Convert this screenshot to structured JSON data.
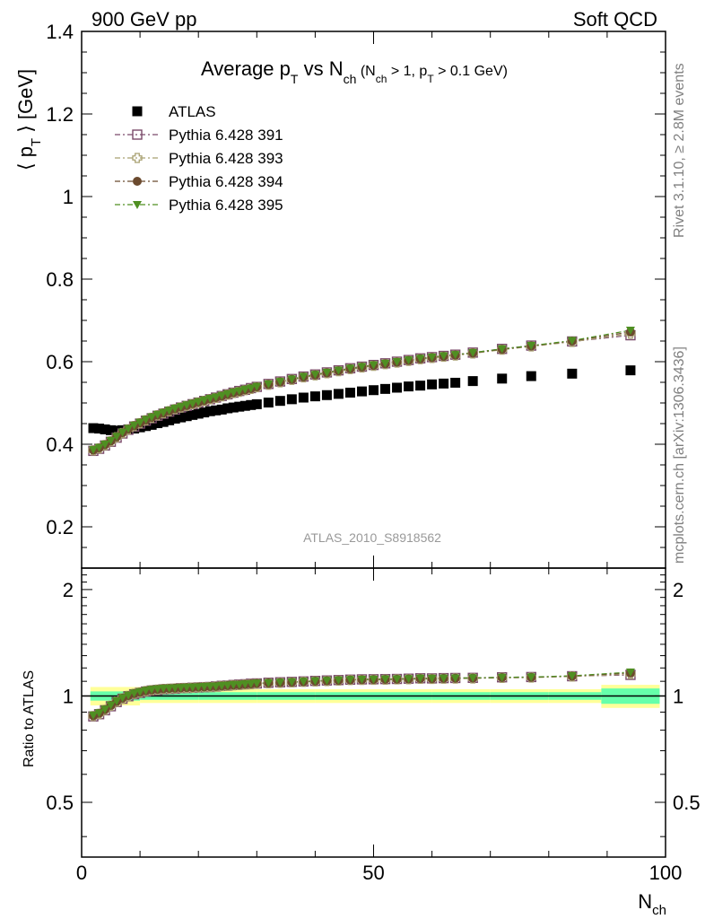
{
  "header": {
    "left": "900 GeV pp",
    "right": "Soft QCD"
  },
  "side_labels": {
    "rivet": "Rivet 3.1.10, ≥ 2.8M events",
    "mcplots": "mcplots.cern.ch [arXiv:1306.3436]"
  },
  "colors": {
    "atlas": "#000000",
    "p391": "#7a4a6a",
    "p393": "#a8a070",
    "p394": "#6b4a2e",
    "p395": "#4f8f22",
    "band_inner": "#66ffaa",
    "band_outer": "#ffff99",
    "ratio_line": "#000000",
    "watermark": "#808080"
  },
  "chart_data": [
    {
      "type": "scatter",
      "title": "Average pT vs Nch (Nch > 1, pT > 0.1 GeV)",
      "title_parts": {
        "main": "Average p",
        "main_sub": "T",
        "vs": " vs N",
        "vs_sub": "ch",
        "cut_open": " (N",
        "cut_sub1": "ch",
        "cut_mid": " > 1, p",
        "cut_sub2": "T",
        "cut_end": " > 0.1 GeV)"
      },
      "ylabel": "⟨ pT ⟩ [GeV]",
      "ylabel_parts": {
        "open": "⟨ p",
        "sub": "T",
        "close": " ⟩ [GeV]"
      },
      "watermark": "ATLAS_2010_S8918562",
      "xlim": [
        0,
        100
      ],
      "ylim": [
        0.1,
        1.4
      ],
      "yticks": [
        0.2,
        0.4,
        0.6,
        0.8,
        1,
        1.2,
        1.4
      ],
      "ytick_labels": [
        "0.2",
        "0.4",
        "0.6",
        "0.8",
        "1",
        "1.2",
        "1.4"
      ],
      "legend_position": "top-left",
      "series": [
        {
          "name": "ATLAS",
          "marker": "square-filled",
          "x": [
            2,
            3,
            4,
            5,
            6,
            7,
            8,
            9,
            10,
            11,
            12,
            13,
            14,
            15,
            16,
            17,
            18,
            19,
            20,
            21,
            22,
            23,
            24,
            25,
            26,
            27,
            28,
            29,
            30,
            32,
            34,
            36,
            38,
            40,
            42,
            44,
            46,
            48,
            50,
            52,
            54,
            56,
            58,
            60,
            62,
            64,
            67,
            72,
            77,
            84,
            94
          ],
          "y": [
            0.439,
            0.438,
            0.436,
            0.434,
            0.433,
            0.434,
            0.436,
            0.438,
            0.441,
            0.444,
            0.447,
            0.451,
            0.454,
            0.458,
            0.462,
            0.465,
            0.468,
            0.471,
            0.474,
            0.477,
            0.48,
            0.482,
            0.484,
            0.487,
            0.489,
            0.491,
            0.493,
            0.495,
            0.497,
            0.501,
            0.505,
            0.509,
            0.513,
            0.516,
            0.519,
            0.522,
            0.525,
            0.528,
            0.531,
            0.534,
            0.537,
            0.54,
            0.542,
            0.545,
            0.547,
            0.549,
            0.553,
            0.559,
            0.565,
            0.571,
            0.579
          ]
        },
        {
          "name": "Pythia 6.428 391",
          "marker": "square-open",
          "x": [
            2,
            3,
            4,
            5,
            6,
            7,
            8,
            9,
            10,
            11,
            12,
            13,
            14,
            15,
            16,
            17,
            18,
            19,
            20,
            21,
            22,
            23,
            24,
            25,
            26,
            27,
            28,
            29,
            30,
            32,
            34,
            36,
            38,
            40,
            42,
            44,
            46,
            48,
            50,
            52,
            54,
            56,
            58,
            60,
            62,
            64,
            67,
            72,
            77,
            84,
            94
          ],
          "y": [
            0.384,
            0.389,
            0.397,
            0.406,
            0.416,
            0.426,
            0.435,
            0.443,
            0.45,
            0.457,
            0.463,
            0.469,
            0.474,
            0.479,
            0.484,
            0.489,
            0.493,
            0.497,
            0.501,
            0.505,
            0.509,
            0.513,
            0.517,
            0.521,
            0.525,
            0.529,
            0.532,
            0.536,
            0.539,
            0.546,
            0.552,
            0.558,
            0.564,
            0.569,
            0.574,
            0.579,
            0.584,
            0.588,
            0.592,
            0.596,
            0.6,
            0.604,
            0.608,
            0.611,
            0.614,
            0.617,
            0.622,
            0.631,
            0.639,
            0.649,
            0.664
          ]
        },
        {
          "name": "Pythia 6.428 393",
          "marker": "cross-open",
          "x": [
            2,
            3,
            4,
            5,
            6,
            7,
            8,
            9,
            10,
            11,
            12,
            13,
            14,
            15,
            16,
            17,
            18,
            19,
            20,
            21,
            22,
            23,
            24,
            25,
            26,
            27,
            28,
            29,
            30,
            32,
            34,
            36,
            38,
            40,
            42,
            44,
            46,
            48,
            50,
            52,
            54,
            56,
            58,
            60,
            62,
            64,
            67,
            72,
            77,
            84,
            94
          ],
          "y": [
            0.385,
            0.39,
            0.398,
            0.407,
            0.417,
            0.427,
            0.436,
            0.444,
            0.451,
            0.458,
            0.464,
            0.47,
            0.475,
            0.48,
            0.485,
            0.489,
            0.493,
            0.497,
            0.501,
            0.505,
            0.509,
            0.512,
            0.516,
            0.52,
            0.524,
            0.527,
            0.531,
            0.534,
            0.538,
            0.544,
            0.55,
            0.556,
            0.562,
            0.567,
            0.572,
            0.577,
            0.582,
            0.586,
            0.59,
            0.594,
            0.598,
            0.602,
            0.606,
            0.609,
            0.612,
            0.615,
            0.62,
            0.629,
            0.637,
            0.648,
            0.668
          ]
        },
        {
          "name": "Pythia 6.428 394",
          "marker": "circle-filled",
          "x": [
            2,
            3,
            4,
            5,
            6,
            7,
            8,
            9,
            10,
            11,
            12,
            13,
            14,
            15,
            16,
            17,
            18,
            19,
            20,
            21,
            22,
            23,
            24,
            25,
            26,
            27,
            28,
            29,
            30,
            32,
            34,
            36,
            38,
            40,
            42,
            44,
            46,
            48,
            50,
            52,
            54,
            56,
            58,
            60,
            62,
            64,
            67,
            72,
            77,
            84,
            94
          ],
          "y": [
            0.386,
            0.391,
            0.399,
            0.408,
            0.418,
            0.428,
            0.437,
            0.445,
            0.452,
            0.459,
            0.465,
            0.471,
            0.476,
            0.481,
            0.486,
            0.49,
            0.494,
            0.498,
            0.502,
            0.506,
            0.51,
            0.513,
            0.517,
            0.521,
            0.525,
            0.528,
            0.532,
            0.535,
            0.539,
            0.545,
            0.551,
            0.557,
            0.563,
            0.568,
            0.573,
            0.578,
            0.583,
            0.587,
            0.591,
            0.595,
            0.599,
            0.603,
            0.607,
            0.61,
            0.613,
            0.616,
            0.621,
            0.63,
            0.638,
            0.65,
            0.672
          ]
        },
        {
          "name": "Pythia 6.428 395",
          "marker": "triangle-down-filled",
          "x": [
            2,
            3,
            4,
            5,
            6,
            7,
            8,
            9,
            10,
            11,
            12,
            13,
            14,
            15,
            16,
            17,
            18,
            19,
            20,
            21,
            22,
            23,
            24,
            25,
            26,
            27,
            28,
            29,
            30,
            32,
            34,
            36,
            38,
            40,
            42,
            44,
            46,
            48,
            50,
            52,
            54,
            56,
            58,
            60,
            62,
            64,
            67,
            72,
            77,
            84,
            94
          ],
          "y": [
            0.387,
            0.392,
            0.4,
            0.409,
            0.419,
            0.429,
            0.438,
            0.446,
            0.453,
            0.46,
            0.466,
            0.472,
            0.477,
            0.482,
            0.487,
            0.491,
            0.495,
            0.499,
            0.503,
            0.507,
            0.511,
            0.514,
            0.518,
            0.522,
            0.526,
            0.529,
            0.533,
            0.536,
            0.54,
            0.546,
            0.552,
            0.558,
            0.564,
            0.569,
            0.574,
            0.579,
            0.584,
            0.588,
            0.592,
            0.596,
            0.6,
            0.604,
            0.608,
            0.611,
            0.614,
            0.617,
            0.622,
            0.631,
            0.639,
            0.651,
            0.676
          ]
        }
      ]
    },
    {
      "type": "scatter",
      "ylabel": "Ratio to ATLAS",
      "xlabel": "Nch",
      "xlabel_parts": {
        "main": "N",
        "sub": "ch"
      },
      "xlim": [
        0,
        100
      ],
      "ylim": [
        0.35,
        2.3
      ],
      "y_scale": "log",
      "xticks": [
        0,
        50,
        100
      ],
      "xtick_labels": [
        "0",
        "50",
        "100"
      ],
      "yticks": [
        0.5,
        1,
        2
      ],
      "ytick_labels": [
        "0.5",
        "1",
        "2"
      ],
      "reference_line": 1,
      "uncertainty_band": {
        "x_edges": [
          1.5,
          10,
          20,
          30,
          40,
          50,
          60,
          70,
          80,
          89,
          99
        ],
        "inner": [
          0.03,
          0.025,
          0.025,
          0.025,
          0.025,
          0.025,
          0.025,
          0.025,
          0.025,
          0.05
        ],
        "outer": [
          0.06,
          0.045,
          0.045,
          0.045,
          0.045,
          0.045,
          0.045,
          0.045,
          0.045,
          0.075
        ]
      },
      "series": [
        {
          "name": "Pythia 6.428 391",
          "marker": "square-open",
          "x": [
            2,
            3,
            4,
            5,
            6,
            7,
            8,
            9,
            10,
            11,
            12,
            13,
            14,
            15,
            16,
            17,
            18,
            19,
            20,
            21,
            22,
            23,
            24,
            25,
            26,
            27,
            28,
            29,
            30,
            32,
            34,
            36,
            38,
            40,
            42,
            44,
            46,
            48,
            50,
            52,
            54,
            56,
            58,
            60,
            62,
            64,
            67,
            72,
            77,
            84,
            94
          ],
          "y": [
            0.875,
            0.888,
            0.911,
            0.935,
            0.961,
            0.982,
            0.998,
            1.011,
            1.02,
            1.029,
            1.036,
            1.04,
            1.044,
            1.046,
            1.048,
            1.052,
            1.053,
            1.055,
            1.057,
            1.059,
            1.06,
            1.064,
            1.068,
            1.07,
            1.074,
            1.077,
            1.079,
            1.083,
            1.085,
            1.09,
            1.093,
            1.096,
            1.099,
            1.103,
            1.106,
            1.109,
            1.112,
            1.114,
            1.115,
            1.116,
            1.117,
            1.119,
            1.122,
            1.121,
            1.123,
            1.124,
            1.125,
            1.129,
            1.131,
            1.137,
            1.147
          ]
        },
        {
          "name": "Pythia 6.428 393",
          "marker": "cross-open",
          "x": [
            2,
            3,
            4,
            5,
            6,
            7,
            8,
            9,
            10,
            11,
            12,
            13,
            14,
            15,
            16,
            17,
            18,
            19,
            20,
            21,
            22,
            23,
            24,
            25,
            26,
            27,
            28,
            29,
            30,
            32,
            34,
            36,
            38,
            40,
            42,
            44,
            46,
            48,
            50,
            52,
            54,
            56,
            58,
            60,
            62,
            64,
            67,
            72,
            77,
            84,
            94
          ],
          "y": [
            0.877,
            0.89,
            0.913,
            0.938,
            0.963,
            0.984,
            1.0,
            1.014,
            1.023,
            1.032,
            1.038,
            1.042,
            1.046,
            1.048,
            1.05,
            1.052,
            1.053,
            1.055,
            1.057,
            1.059,
            1.06,
            1.062,
            1.066,
            1.068,
            1.072,
            1.073,
            1.077,
            1.079,
            1.082,
            1.086,
            1.089,
            1.092,
            1.096,
            1.099,
            1.102,
            1.105,
            1.109,
            1.11,
            1.111,
            1.112,
            1.114,
            1.115,
            1.118,
            1.117,
            1.119,
            1.12,
            1.121,
            1.125,
            1.127,
            1.135,
            1.154
          ]
        },
        {
          "name": "Pythia 6.428 394",
          "marker": "circle-filled",
          "x": [
            2,
            3,
            4,
            5,
            6,
            7,
            8,
            9,
            10,
            11,
            12,
            13,
            14,
            15,
            16,
            17,
            18,
            19,
            20,
            21,
            22,
            23,
            24,
            25,
            26,
            27,
            28,
            29,
            30,
            32,
            34,
            36,
            38,
            40,
            42,
            44,
            46,
            48,
            50,
            52,
            54,
            56,
            58,
            60,
            62,
            64,
            67,
            72,
            77,
            84,
            94
          ],
          "y": [
            0.879,
            0.893,
            0.915,
            0.94,
            0.965,
            0.986,
            1.002,
            1.016,
            1.025,
            1.034,
            1.04,
            1.044,
            1.048,
            1.05,
            1.052,
            1.054,
            1.056,
            1.057,
            1.059,
            1.061,
            1.063,
            1.064,
            1.068,
            1.07,
            1.074,
            1.075,
            1.079,
            1.081,
            1.085,
            1.088,
            1.091,
            1.094,
            1.097,
            1.101,
            1.104,
            1.107,
            1.11,
            1.112,
            1.113,
            1.114,
            1.115,
            1.117,
            1.12,
            1.119,
            1.121,
            1.122,
            1.123,
            1.127,
            1.129,
            1.138,
            1.161
          ]
        },
        {
          "name": "Pythia 6.428 395",
          "marker": "triangle-down-filled",
          "x": [
            2,
            3,
            4,
            5,
            6,
            7,
            8,
            9,
            10,
            11,
            12,
            13,
            14,
            15,
            16,
            17,
            18,
            19,
            20,
            21,
            22,
            23,
            24,
            25,
            26,
            27,
            28,
            29,
            30,
            32,
            34,
            36,
            38,
            40,
            42,
            44,
            46,
            48,
            50,
            52,
            54,
            56,
            58,
            60,
            62,
            64,
            67,
            72,
            77,
            84,
            94
          ],
          "y": [
            0.882,
            0.895,
            0.917,
            0.942,
            0.968,
            0.988,
            1.005,
            1.018,
            1.027,
            1.036,
            1.043,
            1.047,
            1.051,
            1.052,
            1.054,
            1.056,
            1.058,
            1.059,
            1.061,
            1.063,
            1.065,
            1.066,
            1.07,
            1.072,
            1.076,
            1.077,
            1.081,
            1.083,
            1.087,
            1.09,
            1.093,
            1.096,
            1.099,
            1.103,
            1.106,
            1.109,
            1.112,
            1.114,
            1.115,
            1.116,
            1.117,
            1.119,
            1.122,
            1.121,
            1.123,
            1.124,
            1.125,
            1.129,
            1.131,
            1.14,
            1.168
          ]
        }
      ]
    }
  ]
}
